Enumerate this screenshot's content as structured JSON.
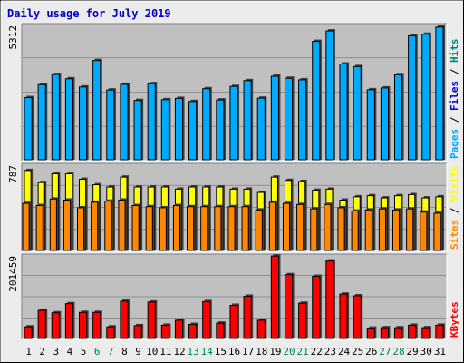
{
  "title": "Daily usage for July 2019",
  "colors": {
    "background": "#ececec",
    "panel": "#c0c0c0",
    "title": "#0000cc",
    "pages": "#00aaff",
    "pages_dark": "#006699",
    "files": "#00aaff",
    "hits": "#00aaff",
    "visits": "#ffff00",
    "sites": "#ff8800",
    "kbytes": "#ff0000",
    "weekend_label": "#00805c",
    "weekday_label": "#000000",
    "gridline": "#808080"
  },
  "chart_data": {
    "type": "bar",
    "title": "Daily usage for July 2019",
    "categories": [
      "1",
      "2",
      "3",
      "4",
      "5",
      "6",
      "7",
      "8",
      "9",
      "10",
      "11",
      "12",
      "13",
      "14",
      "15",
      "16",
      "17",
      "18",
      "19",
      "20",
      "21",
      "22",
      "23",
      "24",
      "25",
      "26",
      "27",
      "28",
      "29",
      "30",
      "31"
    ],
    "weekend_days": [
      "6",
      "7",
      "13",
      "14",
      "20",
      "21",
      "27",
      "28"
    ],
    "panels": [
      {
        "id": "top",
        "max_label": "5312",
        "max": 5312,
        "legend": [
          {
            "text": "Pages",
            "color": "#00aaff"
          },
          {
            "text": " / ",
            "color": "#000000"
          },
          {
            "text": "Files",
            "color": "#0000cc"
          },
          {
            "text": " / ",
            "color": "#000000"
          },
          {
            "text": "Hits",
            "color": "#008080"
          }
        ],
        "series": [
          {
            "name": "Hits",
            "values": [
              2440,
              2950,
              3350,
              3180,
              2860,
              3900,
              2740,
              2960,
              2330,
              2990,
              2360,
              2410,
              2290,
              2790,
              2350,
              2880,
              3110,
              2420,
              3280,
              3200,
              3140,
              4650,
              5060,
              3760,
              3660,
              2750,
              2820,
              3340,
              4870,
              4930,
              5210
            ]
          }
        ]
      },
      {
        "id": "middle",
        "max_label": "787",
        "max": 787,
        "legend": [
          {
            "text": "Sites",
            "color": "#ff8800"
          },
          {
            "text": " / ",
            "color": "#000000"
          },
          {
            "text": "Visits",
            "color": "#ffff00"
          }
        ],
        "series": [
          {
            "name": "Visits",
            "values": [
              730,
              620,
              700,
              700,
              650,
              600,
              580,
              670,
              580,
              580,
              580,
              560,
              580,
              580,
              580,
              560,
              560,
              530,
              670,
              640,
              630,
              550,
              560,
              460,
              490,
              500,
              480,
              500,
              510,
              480,
              490
            ]
          },
          {
            "name": "Sites",
            "values": [
              430,
              410,
              470,
              460,
              390,
              440,
              450,
              460,
              410,
              400,
              390,
              410,
              400,
              400,
              400,
              400,
              400,
              370,
              440,
              430,
              420,
              380,
              420,
              390,
              360,
              370,
              380,
              370,
              380,
              350,
              340
            ]
          }
        ]
      },
      {
        "id": "bottom",
        "max_label": "201459",
        "max": 201459,
        "legend": [
          {
            "text": "KBytes",
            "color": "#ff0000"
          }
        ],
        "series": [
          {
            "name": "KBytes",
            "values": [
              28000,
              68000,
              62000,
              84000,
              63000,
              63000,
              28000,
              90000,
              31000,
              88000,
              32000,
              44000,
              34000,
              89000,
              37000,
              80000,
              102000,
              44000,
              199000,
              154000,
              85000,
              150000,
              187000,
              107000,
              103000,
              25000,
              26000,
              26000,
              32000,
              26000,
              32000
            ]
          }
        ]
      }
    ]
  }
}
